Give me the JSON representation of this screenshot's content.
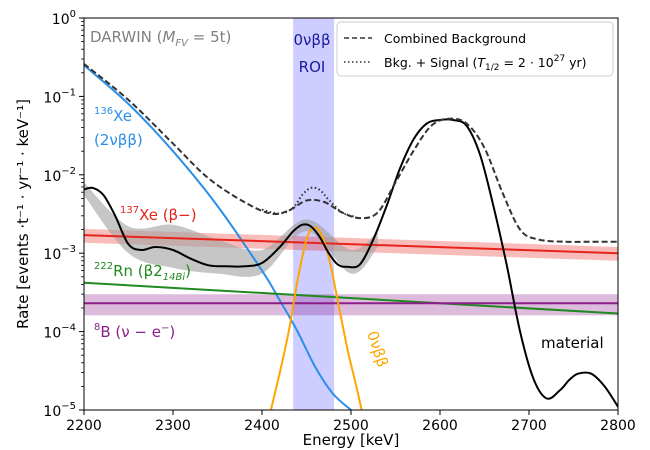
{
  "chart_data": {
    "type": "line",
    "title": "",
    "xlabel": "Energy [keV]",
    "ylabel": "Rate [events ·t⁻¹ · yr⁻¹ · keV⁻¹]",
    "xlim": [
      2200,
      2800
    ],
    "ylim": [
      1e-05,
      1
    ],
    "yscale": "log",
    "grid": false,
    "x_ticks": [
      "2200",
      "2300",
      "2400",
      "2500",
      "2600",
      "2700",
      "2800"
    ],
    "y_ticks": [
      {
        "mantissa": "10",
        "exp": "−5",
        "value": 1e-05
      },
      {
        "mantissa": "10",
        "exp": "−4",
        "value": 0.0001
      },
      {
        "mantissa": "10",
        "exp": "−3",
        "value": 0.001
      },
      {
        "mantissa": "10",
        "exp": "−2",
        "value": 0.01
      },
      {
        "mantissa": "10",
        "exp": "−1",
        "value": 0.1
      },
      {
        "mantissa": "10",
        "exp": "0",
        "value": 1
      }
    ],
    "detector_label": "DARWIN (M_FV = 5t)",
    "roi": {
      "x_range": [
        2435,
        2481
      ],
      "label_line1": "0νββ",
      "label_line2": "ROI",
      "color": "#c8c8ff"
    },
    "legend": {
      "position": "top-right",
      "entries": [
        {
          "label": "Combined Background",
          "style": "dashed"
        },
        {
          "label": "Bkg. + Signal (T1/2 = 2 · 10^27 yr)",
          "style": "dotted"
        }
      ]
    },
    "series": [
      {
        "name": "136Xe (2νββ)",
        "color": "#2b8fe8",
        "style": "solid",
        "x": [
          2200,
          2250,
          2300,
          2350,
          2400,
          2420,
          2440,
          2460,
          2480,
          2500
        ],
        "y": [
          0.25,
          0.08,
          0.02,
          0.004,
          0.0006,
          0.00025,
          0.0001,
          3.5e-05,
          1.6e-05,
          1e-05
        ]
      },
      {
        "name": "137Xe (β−)",
        "color": "#e8231c",
        "style": "solid",
        "band": [
          0.8,
          1.2
        ],
        "x": [
          2200,
          2800
        ],
        "y": [
          0.0017,
          0.001
        ]
      },
      {
        "name": "222Rn (β214Bi)",
        "color": "#1f8a1f",
        "style": "solid",
        "x": [
          2200,
          2800
        ],
        "y": [
          0.00042,
          0.00017
        ]
      },
      {
        "name": "8B (ν−e−)",
        "color": "#8a1f8a",
        "style": "solid",
        "band": [
          0.7,
          1.3
        ],
        "x": [
          2200,
          2800
        ],
        "y": [
          0.00023,
          0.00023
        ]
      },
      {
        "name": "0νββ",
        "color": "#ffa500",
        "style": "solid",
        "x": [
          2410,
          2420,
          2430,
          2440,
          2450,
          2458,
          2466,
          2476,
          2486,
          2496,
          2506,
          2512
        ],
        "y": [
          1e-05,
          3e-05,
          0.0001,
          0.00045,
          0.0015,
          0.0021,
          0.0018,
          0.0008,
          0.00022,
          6e-05,
          2e-05,
          1e-05
        ]
      },
      {
        "name": "material",
        "color": "#000000",
        "style": "solid",
        "x": [
          2200,
          2210,
          2222,
          2235,
          2250,
          2265,
          2280,
          2300,
          2320,
          2340,
          2360,
          2380,
          2400,
          2420,
          2435,
          2445,
          2455,
          2465,
          2475,
          2485,
          2495,
          2510,
          2525,
          2540,
          2555,
          2570,
          2585,
          2600,
          2615,
          2630,
          2645,
          2660,
          2675,
          2690,
          2705,
          2720,
          2735,
          2745,
          2755,
          2770,
          2785,
          2800
        ],
        "y": [
          0.0065,
          0.0068,
          0.0055,
          0.003,
          0.0013,
          0.0011,
          0.0012,
          0.0011,
          0.00085,
          0.0007,
          0.00068,
          0.00068,
          0.00075,
          0.0012,
          0.0019,
          0.0023,
          0.0022,
          0.0016,
          0.001,
          0.00072,
          0.00067,
          0.00072,
          0.0015,
          0.004,
          0.012,
          0.028,
          0.045,
          0.05,
          0.05,
          0.042,
          0.018,
          0.004,
          0.0007,
          0.0001,
          2.5e-05,
          1.4e-05,
          1.8e-05,
          2.4e-05,
          2.9e-05,
          2.9e-05,
          2e-05,
          1.1e-05
        ],
        "uncertainty_x": [
          2200,
          2250,
          2300,
          2350,
          2400,
          2450,
          2500,
          2530
        ],
        "uncertainty_lo": [
          0.0055,
          0.001,
          0.00065,
          0.00055,
          0.00055,
          0.0019,
          0.00055,
          0.0012
        ],
        "uncertainty_hi": [
          0.008,
          0.0022,
          0.0023,
          0.0015,
          0.0011,
          0.0027,
          0.0011,
          0.0019
        ]
      },
      {
        "name": "Combined Background",
        "color": "#333333",
        "style": "dashed",
        "x": [
          2200,
          2250,
          2300,
          2340,
          2380,
          2410,
          2430,
          2450,
          2470,
          2490,
          2510,
          2530,
          2550,
          2570,
          2590,
          2610,
          2630,
          2650,
          2670,
          2690,
          2710,
          2740,
          2770,
          2800
        ],
        "y": [
          0.26,
          0.09,
          0.025,
          0.009,
          0.0045,
          0.0032,
          0.0035,
          0.0047,
          0.0045,
          0.0033,
          0.0028,
          0.0033,
          0.008,
          0.02,
          0.042,
          0.052,
          0.045,
          0.022,
          0.006,
          0.002,
          0.0015,
          0.0014,
          0.0014,
          0.0014
        ]
      },
      {
        "name": "Bkg. + Signal (T1/2 = 2 · 10^27 yr)",
        "color": "#333333",
        "style": "dotted",
        "x": [
          2400,
          2420,
          2435,
          2445,
          2455,
          2465,
          2475,
          2490,
          2505
        ],
        "y": [
          0.0036,
          0.0032,
          0.0038,
          0.0055,
          0.0068,
          0.0064,
          0.0048,
          0.0033,
          0.0029
        ]
      }
    ],
    "annotations": [
      {
        "key": "xe136_a",
        "text": "136Xe",
        "color": "#2b8fe8"
      },
      {
        "key": "xe136_b",
        "text": "(2νββ)",
        "color": "#2b8fe8"
      },
      {
        "key": "xe137",
        "text": "137Xe (β−)",
        "color": "#e8231c"
      },
      {
        "key": "rn222",
        "text": "222Rn (β214Bi)",
        "color": "#1f8a1f"
      },
      {
        "key": "b8",
        "text": "8B (ν − e−)",
        "color": "#8a1f8a"
      },
      {
        "key": "nbb",
        "text": "0νββ",
        "color": "#ffa500"
      },
      {
        "key": "material",
        "text": "material",
        "color": "#000000"
      }
    ]
  }
}
